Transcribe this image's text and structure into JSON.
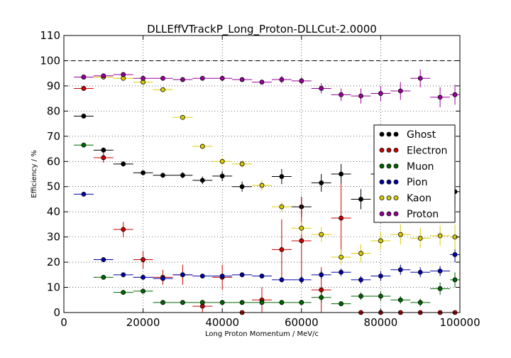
{
  "chart_data": {
    "type": "scatter",
    "title": "DLLEffVTrackP_Long_Proton-DLLCut-2.0000",
    "xlabel": "Long Proton Momentum / MeV/c",
    "ylabel": "Efficiency / %",
    "xlim": [
      0,
      100000
    ],
    "ylim": [
      0,
      110
    ],
    "xticks": [
      "0",
      "20000",
      "40000",
      "60000",
      "80000",
      "100000"
    ],
    "yticks": [
      "0",
      "10",
      "20",
      "30",
      "40",
      "50",
      "60",
      "70",
      "80",
      "90",
      "100",
      "110"
    ],
    "grid": true,
    "reference_line": 100,
    "legend_position": "right",
    "bin_half_width": 2500,
    "series": [
      {
        "name": "Ghost",
        "color": "#000000",
        "x": [
          5000,
          10000,
          15000,
          20000,
          25000,
          30000,
          35000,
          40000,
          45000,
          50000,
          55000,
          60000,
          65000,
          70000,
          75000,
          80000,
          85000,
          90000,
          95000,
          100000
        ],
        "y": [
          78,
          64.5,
          59,
          55.5,
          54.5,
          54.5,
          52.5,
          54.2,
          50,
          null,
          54,
          42,
          51.5,
          55,
          45,
          55,
          null,
          null,
          null,
          48
        ],
        "err": [
          0.5,
          1,
          0.7,
          0.8,
          1,
          1.2,
          1.5,
          2,
          2,
          null,
          3,
          4,
          3.5,
          4,
          4,
          5,
          null,
          null,
          null,
          5
        ]
      },
      {
        "name": "Electron",
        "color": "#cc0000",
        "x": [
          5000,
          10000,
          15000,
          20000,
          25000,
          30000,
          35000,
          40000,
          45000,
          50000,
          55000,
          60000,
          65000,
          70000,
          75000,
          80000,
          85000,
          90000,
          95000,
          100000
        ],
        "y": [
          89,
          61.5,
          33,
          21,
          14,
          15,
          2.5,
          14,
          0,
          5,
          25,
          28.5,
          9,
          37.5,
          0,
          0,
          0,
          0,
          0,
          0
        ],
        "err": [
          0.8,
          2,
          3,
          3.5,
          3,
          4,
          2.5,
          5,
          0,
          5,
          12,
          17,
          9,
          14,
          0,
          0,
          0,
          0,
          0,
          0
        ]
      },
      {
        "name": "Muon",
        "color": "#006600",
        "x": [
          5000,
          10000,
          15000,
          20000,
          25000,
          30000,
          35000,
          40000,
          45000,
          50000,
          55000,
          60000,
          65000,
          70000,
          75000,
          80000,
          85000,
          90000,
          95000,
          100000
        ],
        "y": [
          66.5,
          14,
          8,
          8.5,
          4,
          4,
          4,
          4,
          4,
          4,
          4,
          4,
          6,
          3.5,
          6.5,
          6.5,
          5,
          4,
          9.5,
          13
        ],
        "err": [
          0.5,
          0.5,
          0.5,
          0.5,
          0.5,
          0.5,
          0.8,
          1,
          0.8,
          1,
          1,
          1,
          2,
          1,
          1.5,
          2,
          1.5,
          1.5,
          2.5,
          3
        ]
      },
      {
        "name": "Pion",
        "color": "#0000aa",
        "x": [
          5000,
          10000,
          15000,
          20000,
          25000,
          30000,
          35000,
          40000,
          45000,
          50000,
          55000,
          60000,
          65000,
          70000,
          75000,
          80000,
          85000,
          90000,
          95000,
          100000
        ],
        "y": [
          47,
          21,
          15,
          14,
          13.5,
          15,
          14.5,
          14.5,
          15,
          14.5,
          13,
          13,
          15,
          16,
          13,
          14.5,
          17,
          16,
          16.5,
          23
        ],
        "err": [
          0.5,
          0.5,
          0.5,
          0.5,
          0.5,
          0.5,
          0.5,
          0.8,
          0.8,
          1,
          1,
          1.5,
          1.5,
          1.5,
          1.5,
          2,
          2,
          2,
          2,
          3
        ]
      },
      {
        "name": "Kaon",
        "color": "#ddcc00",
        "x": [
          5000,
          10000,
          15000,
          20000,
          25000,
          30000,
          35000,
          40000,
          45000,
          50000,
          55000,
          60000,
          65000,
          70000,
          75000,
          80000,
          85000,
          90000,
          95000,
          100000
        ],
        "y": [
          93.5,
          93.5,
          93,
          91.5,
          88.5,
          77.5,
          66,
          60,
          59,
          50.5,
          42,
          33.5,
          31,
          22,
          23.5,
          28.5,
          31,
          29.5,
          30.5,
          30
        ],
        "err": [
          0.3,
          0.3,
          0.4,
          0.5,
          0.8,
          1,
          1.2,
          1.5,
          1.5,
          2,
          2,
          2.5,
          3,
          3,
          3.5,
          3.5,
          4,
          4,
          4,
          5
        ]
      },
      {
        "name": "Proton",
        "color": "#990099",
        "x": [
          5000,
          10000,
          15000,
          20000,
          25000,
          30000,
          35000,
          40000,
          45000,
          50000,
          55000,
          60000,
          65000,
          70000,
          75000,
          80000,
          85000,
          90000,
          95000,
          100000
        ],
        "y": [
          93.5,
          94,
          94.5,
          93,
          93,
          92.5,
          93,
          93,
          92.5,
          91.5,
          92.5,
          92,
          89,
          86.5,
          86,
          87,
          88,
          93,
          85.5,
          86.5
        ],
        "err": [
          0.3,
          0.3,
          0.5,
          0.5,
          0.5,
          0.8,
          0.8,
          1,
          1,
          1,
          1.5,
          1.5,
          2,
          2.5,
          3,
          3,
          3.5,
          3.5,
          4,
          4
        ]
      }
    ]
  }
}
